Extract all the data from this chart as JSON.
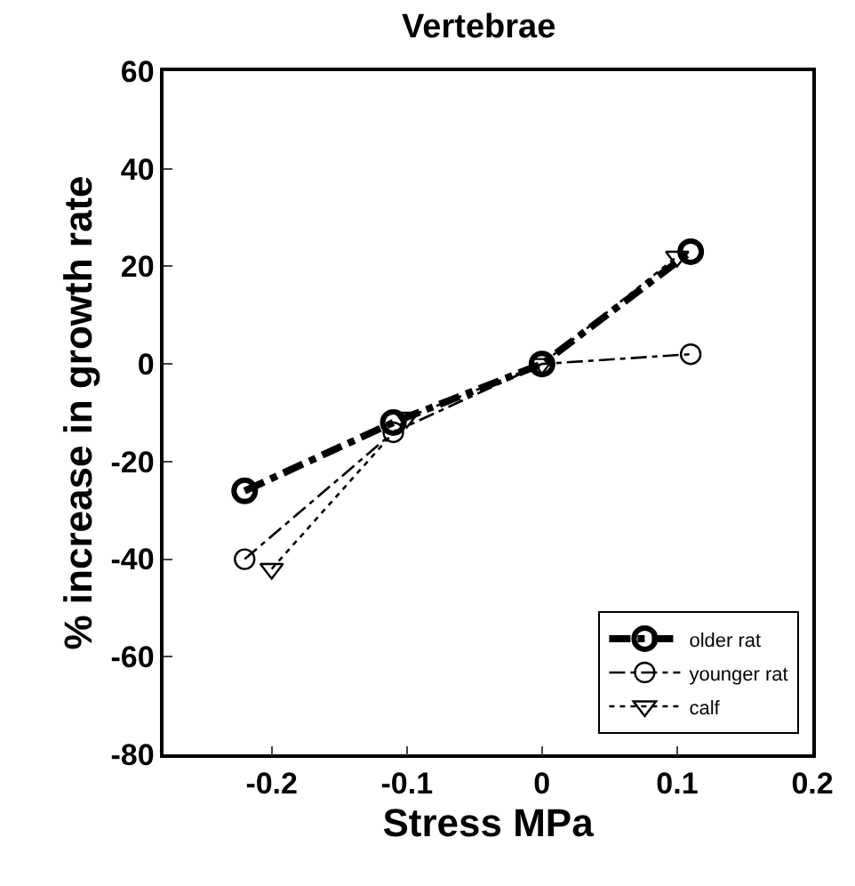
{
  "chart_data": {
    "type": "line",
    "title": "Vertebrae",
    "xlabel": "Stress MPa",
    "ylabel": "% increase in growth rate",
    "xlim": [
      -0.28,
      0.2
    ],
    "xticks": [
      -0.2,
      -0.1,
      0,
      0.1,
      0.2
    ],
    "ylim": [
      -80,
      60
    ],
    "yticks": [
      -80,
      -60,
      -40,
      -20,
      0,
      20,
      40,
      60
    ],
    "legend": "bottom right",
    "series": [
      {
        "name": "older rat",
        "color": "#000000",
        "x": [
          -0.22,
          -0.11,
          0,
          0.11
        ],
        "values": [
          -26,
          -12,
          0,
          23
        ],
        "marker": "circle",
        "line_style": "dashed"
      },
      {
        "name": "younger rat",
        "color": "#000000",
        "x": [
          -0.22,
          -0.11,
          0,
          0.11
        ],
        "values": [
          -40,
          -14,
          0,
          2
        ],
        "marker": "circle",
        "line_style": "dashed"
      },
      {
        "name": "calf",
        "color": "#000000",
        "x": [
          -0.2,
          -0.1,
          0,
          0.1
        ],
        "values": [
          -42,
          -11,
          0,
          22
        ],
        "marker": "triangle",
        "line_style": "dotted"
      }
    ]
  }
}
